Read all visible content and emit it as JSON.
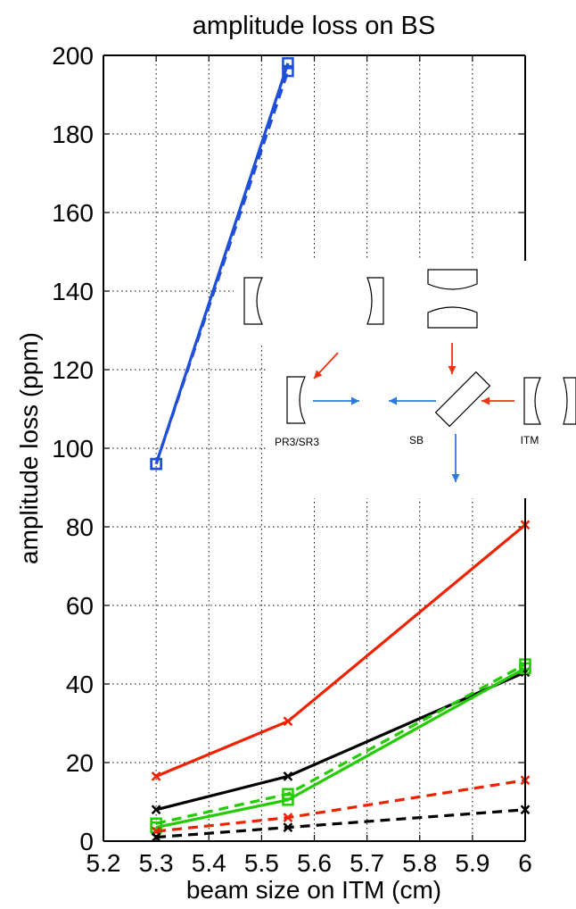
{
  "chart_data": {
    "type": "line",
    "title": "amplitude loss on BS",
    "xlabel": "beam size on ITM (cm)",
    "ylabel": "amplitude loss (ppm)",
    "xlim": [
      5.2,
      6.0
    ],
    "ylim": [
      0,
      200
    ],
    "xticks": [
      5.2,
      5.3,
      5.4,
      5.5,
      5.6,
      5.7,
      5.8,
      5.9,
      6.0
    ],
    "xtick_labels": [
      "5.2",
      "5.3",
      "5.4",
      "5.5",
      "5.6",
      "5.7",
      "5.8",
      "5.9",
      "6"
    ],
    "yticks": [
      0,
      20,
      40,
      60,
      80,
      100,
      120,
      140,
      160,
      180,
      200
    ],
    "ytick_labels": [
      "0",
      "20",
      "40",
      "60",
      "80",
      "100",
      "120",
      "140",
      "160",
      "180",
      "200"
    ],
    "grid": true,
    "series": [
      {
        "color": "#1f4fd8",
        "dash": "solid",
        "marker": "square",
        "x": [
          5.3,
          5.55
        ],
        "y": [
          96,
          198
        ]
      },
      {
        "color": "#1f4fd8",
        "dash": "dashed",
        "marker": "square",
        "x": [
          5.3,
          5.55
        ],
        "y": [
          96,
          196
        ]
      },
      {
        "color": "#ee2200",
        "dash": "solid",
        "marker": "x",
        "x": [
          5.3,
          5.55,
          6.0
        ],
        "y": [
          16.5,
          30.5,
          80.5
        ]
      },
      {
        "color": "#000000",
        "dash": "solid",
        "marker": "x",
        "x": [
          5.3,
          5.55,
          6.0
        ],
        "y": [
          8,
          16.5,
          43
        ]
      },
      {
        "color": "#22cc00",
        "dash": "solid",
        "marker": "square",
        "x": [
          5.3,
          5.55,
          6.0
        ],
        "y": [
          3.5,
          10.5,
          44
        ]
      },
      {
        "color": "#22cc00",
        "dash": "dashed",
        "marker": "square",
        "x": [
          5.3,
          5.55,
          6.0
        ],
        "y": [
          4.5,
          12,
          45
        ]
      },
      {
        "color": "#ee2200",
        "dash": "dashed",
        "marker": "x",
        "x": [
          5.3,
          5.55,
          6.0
        ],
        "y": [
          2.5,
          6,
          15.5
        ]
      },
      {
        "color": "#000000",
        "dash": "dashed",
        "marker": "x",
        "x": [
          5.3,
          5.55,
          6.0
        ],
        "y": [
          1,
          3.5,
          8
        ]
      }
    ],
    "inset_labels": {
      "pr3": "PR3/SR3",
      "sb": "SB",
      "itm": "ITM"
    },
    "arrow_colors": {
      "red": "#ee3311",
      "blue": "#2a7be0"
    }
  }
}
